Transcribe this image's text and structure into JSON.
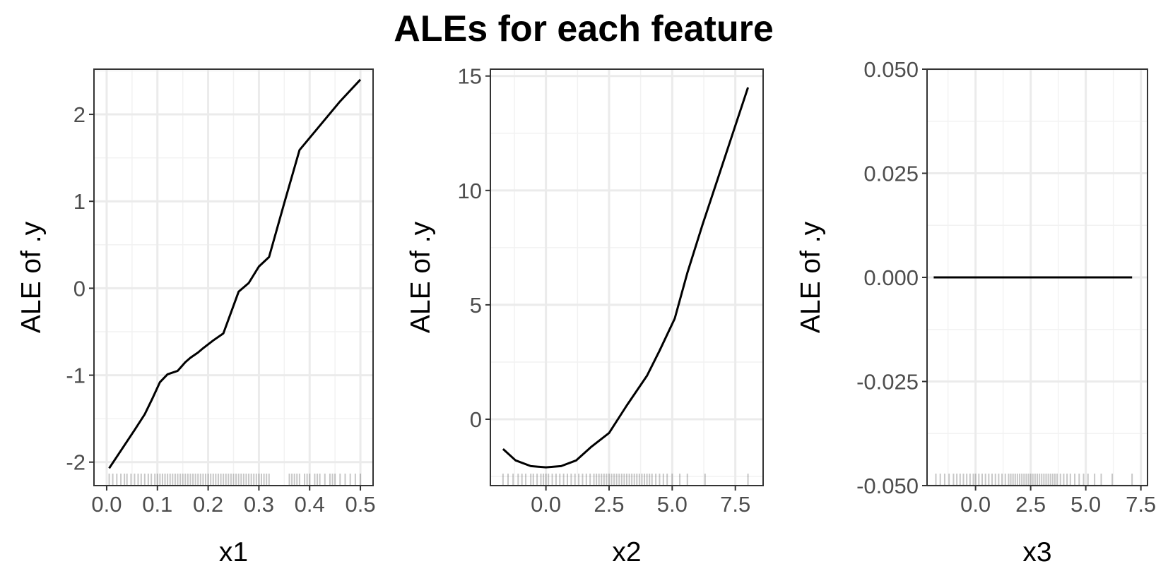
{
  "title": "ALEs for each feature",
  "chart_data": [
    {
      "type": "line",
      "xlabel": "x1",
      "ylabel": "ALE of .y",
      "xlim": [
        -0.025,
        0.525
      ],
      "ylim": [
        -2.27,
        2.52
      ],
      "x_ticks": [
        0.0,
        0.1,
        0.2,
        0.3,
        0.4,
        0.5
      ],
      "x_tick_labels": [
        "0.0",
        "0.1",
        "0.2",
        "0.3",
        "0.4",
        "0.5"
      ],
      "y_ticks": [
        -2,
        -1,
        0,
        1,
        2
      ],
      "y_tick_labels": [
        "-2",
        "-1",
        "0",
        "1",
        "2"
      ],
      "grid": true,
      "series": [
        {
          "x": [
            0.005,
            0.03,
            0.055,
            0.075,
            0.09,
            0.105,
            0.12,
            0.14,
            0.155,
            0.165,
            0.18,
            0.19,
            0.21,
            0.23,
            0.26,
            0.28,
            0.3,
            0.32,
            0.35,
            0.38,
            0.42,
            0.46,
            0.5
          ],
          "y": [
            -2.07,
            -1.85,
            -1.63,
            -1.45,
            -1.27,
            -1.08,
            -0.99,
            -0.95,
            -0.85,
            -0.8,
            -0.74,
            -0.69,
            -0.6,
            -0.52,
            -0.04,
            0.06,
            0.25,
            0.36,
            0.98,
            1.59,
            1.87,
            2.15,
            2.4
          ]
        }
      ],
      "rug": [
        0.005,
        0.012,
        0.02,
        0.028,
        0.035,
        0.04,
        0.048,
        0.055,
        0.062,
        0.068,
        0.075,
        0.082,
        0.088,
        0.095,
        0.1,
        0.105,
        0.11,
        0.115,
        0.12,
        0.125,
        0.13,
        0.135,
        0.14,
        0.145,
        0.15,
        0.155,
        0.16,
        0.165,
        0.17,
        0.175,
        0.18,
        0.185,
        0.19,
        0.195,
        0.2,
        0.205,
        0.21,
        0.215,
        0.22,
        0.225,
        0.23,
        0.235,
        0.24,
        0.245,
        0.25,
        0.255,
        0.26,
        0.265,
        0.27,
        0.275,
        0.28,
        0.285,
        0.29,
        0.295,
        0.3,
        0.305,
        0.31,
        0.315,
        0.32,
        0.36,
        0.365,
        0.37,
        0.375,
        0.38,
        0.39,
        0.395,
        0.4,
        0.41,
        0.415,
        0.42,
        0.43,
        0.44,
        0.445,
        0.45,
        0.46,
        0.47,
        0.48,
        0.49,
        0.5
      ]
    },
    {
      "type": "line",
      "xlabel": "x2",
      "ylabel": "ALE of .y",
      "xlim": [
        -2.2,
        8.6
      ],
      "ylim": [
        -2.9,
        15.3
      ],
      "x_ticks": [
        0.0,
        2.5,
        5.0,
        7.5
      ],
      "x_tick_labels": [
        "0.0",
        "2.5",
        "5.0",
        "7.5"
      ],
      "y_ticks": [
        0,
        5,
        10,
        15
      ],
      "y_tick_labels": [
        "0",
        "5",
        "10",
        "15"
      ],
      "grid": true,
      "series": [
        {
          "x": [
            -1.7,
            -1.2,
            -0.6,
            0,
            0.6,
            1.2,
            1.8,
            2.5,
            3.2,
            4.0,
            4.5,
            5.1,
            5.6,
            6.2,
            6.8,
            7.4,
            8.0
          ],
          "y": [
            -1.3,
            -1.8,
            -2.05,
            -2.1,
            -2.05,
            -1.8,
            -1.2,
            -0.6,
            0.6,
            1.9,
            3.0,
            4.4,
            6.4,
            8.5,
            10.5,
            12.5,
            14.5
          ]
        }
      ],
      "rug": [
        -1.7,
        -1.5,
        -1.3,
        -1.1,
        -0.95,
        -0.8,
        -0.6,
        -0.5,
        -0.35,
        -0.2,
        -0.1,
        0.0,
        0.1,
        0.25,
        0.4,
        0.55,
        0.7,
        0.85,
        1.0,
        1.15,
        1.3,
        1.45,
        1.6,
        1.75,
        1.9,
        2.0,
        2.1,
        2.2,
        2.3,
        2.4,
        2.5,
        2.6,
        2.7,
        2.8,
        2.9,
        3.0,
        3.1,
        3.2,
        3.3,
        3.4,
        3.5,
        3.6,
        3.7,
        3.8,
        3.9,
        4.0,
        4.1,
        4.2,
        4.35,
        4.5,
        4.65,
        4.8,
        5.0,
        5.3,
        5.6,
        6.3,
        8.0
      ]
    },
    {
      "type": "line",
      "xlabel": "x3",
      "ylabel": "ALE of .y",
      "xlim": [
        -2.2,
        7.8
      ],
      "ylim": [
        -0.05,
        0.05
      ],
      "x_ticks": [
        0.0,
        2.5,
        5.0,
        7.5
      ],
      "x_tick_labels": [
        "0.0",
        "2.5",
        "5.0",
        "7.5"
      ],
      "y_ticks": [
        -0.05,
        -0.025,
        0,
        0.025,
        0.05
      ],
      "y_tick_labels": [
        "-0.050",
        "-0.025",
        "0.000",
        "0.025",
        "0.050"
      ],
      "grid": true,
      "series": [
        {
          "x": [
            -1.9,
            7.1
          ],
          "y": [
            0,
            0
          ]
        }
      ],
      "rug": [
        -1.8,
        -1.6,
        -1.4,
        -1.2,
        -1.0,
        -0.85,
        -0.7,
        -0.55,
        -0.4,
        -0.25,
        -0.1,
        0.0,
        0.15,
        0.3,
        0.45,
        0.6,
        0.75,
        0.9,
        1.05,
        1.2,
        1.35,
        1.5,
        1.6,
        1.7,
        1.8,
        1.9,
        2.0,
        2.1,
        2.2,
        2.3,
        2.4,
        2.5,
        2.6,
        2.7,
        2.8,
        2.9,
        3.0,
        3.1,
        3.2,
        3.3,
        3.4,
        3.5,
        3.6,
        3.7,
        3.85,
        4.0,
        4.15,
        4.3,
        4.5,
        4.7,
        4.9,
        5.1,
        5.4,
        5.7,
        6.2,
        7.1
      ]
    }
  ]
}
